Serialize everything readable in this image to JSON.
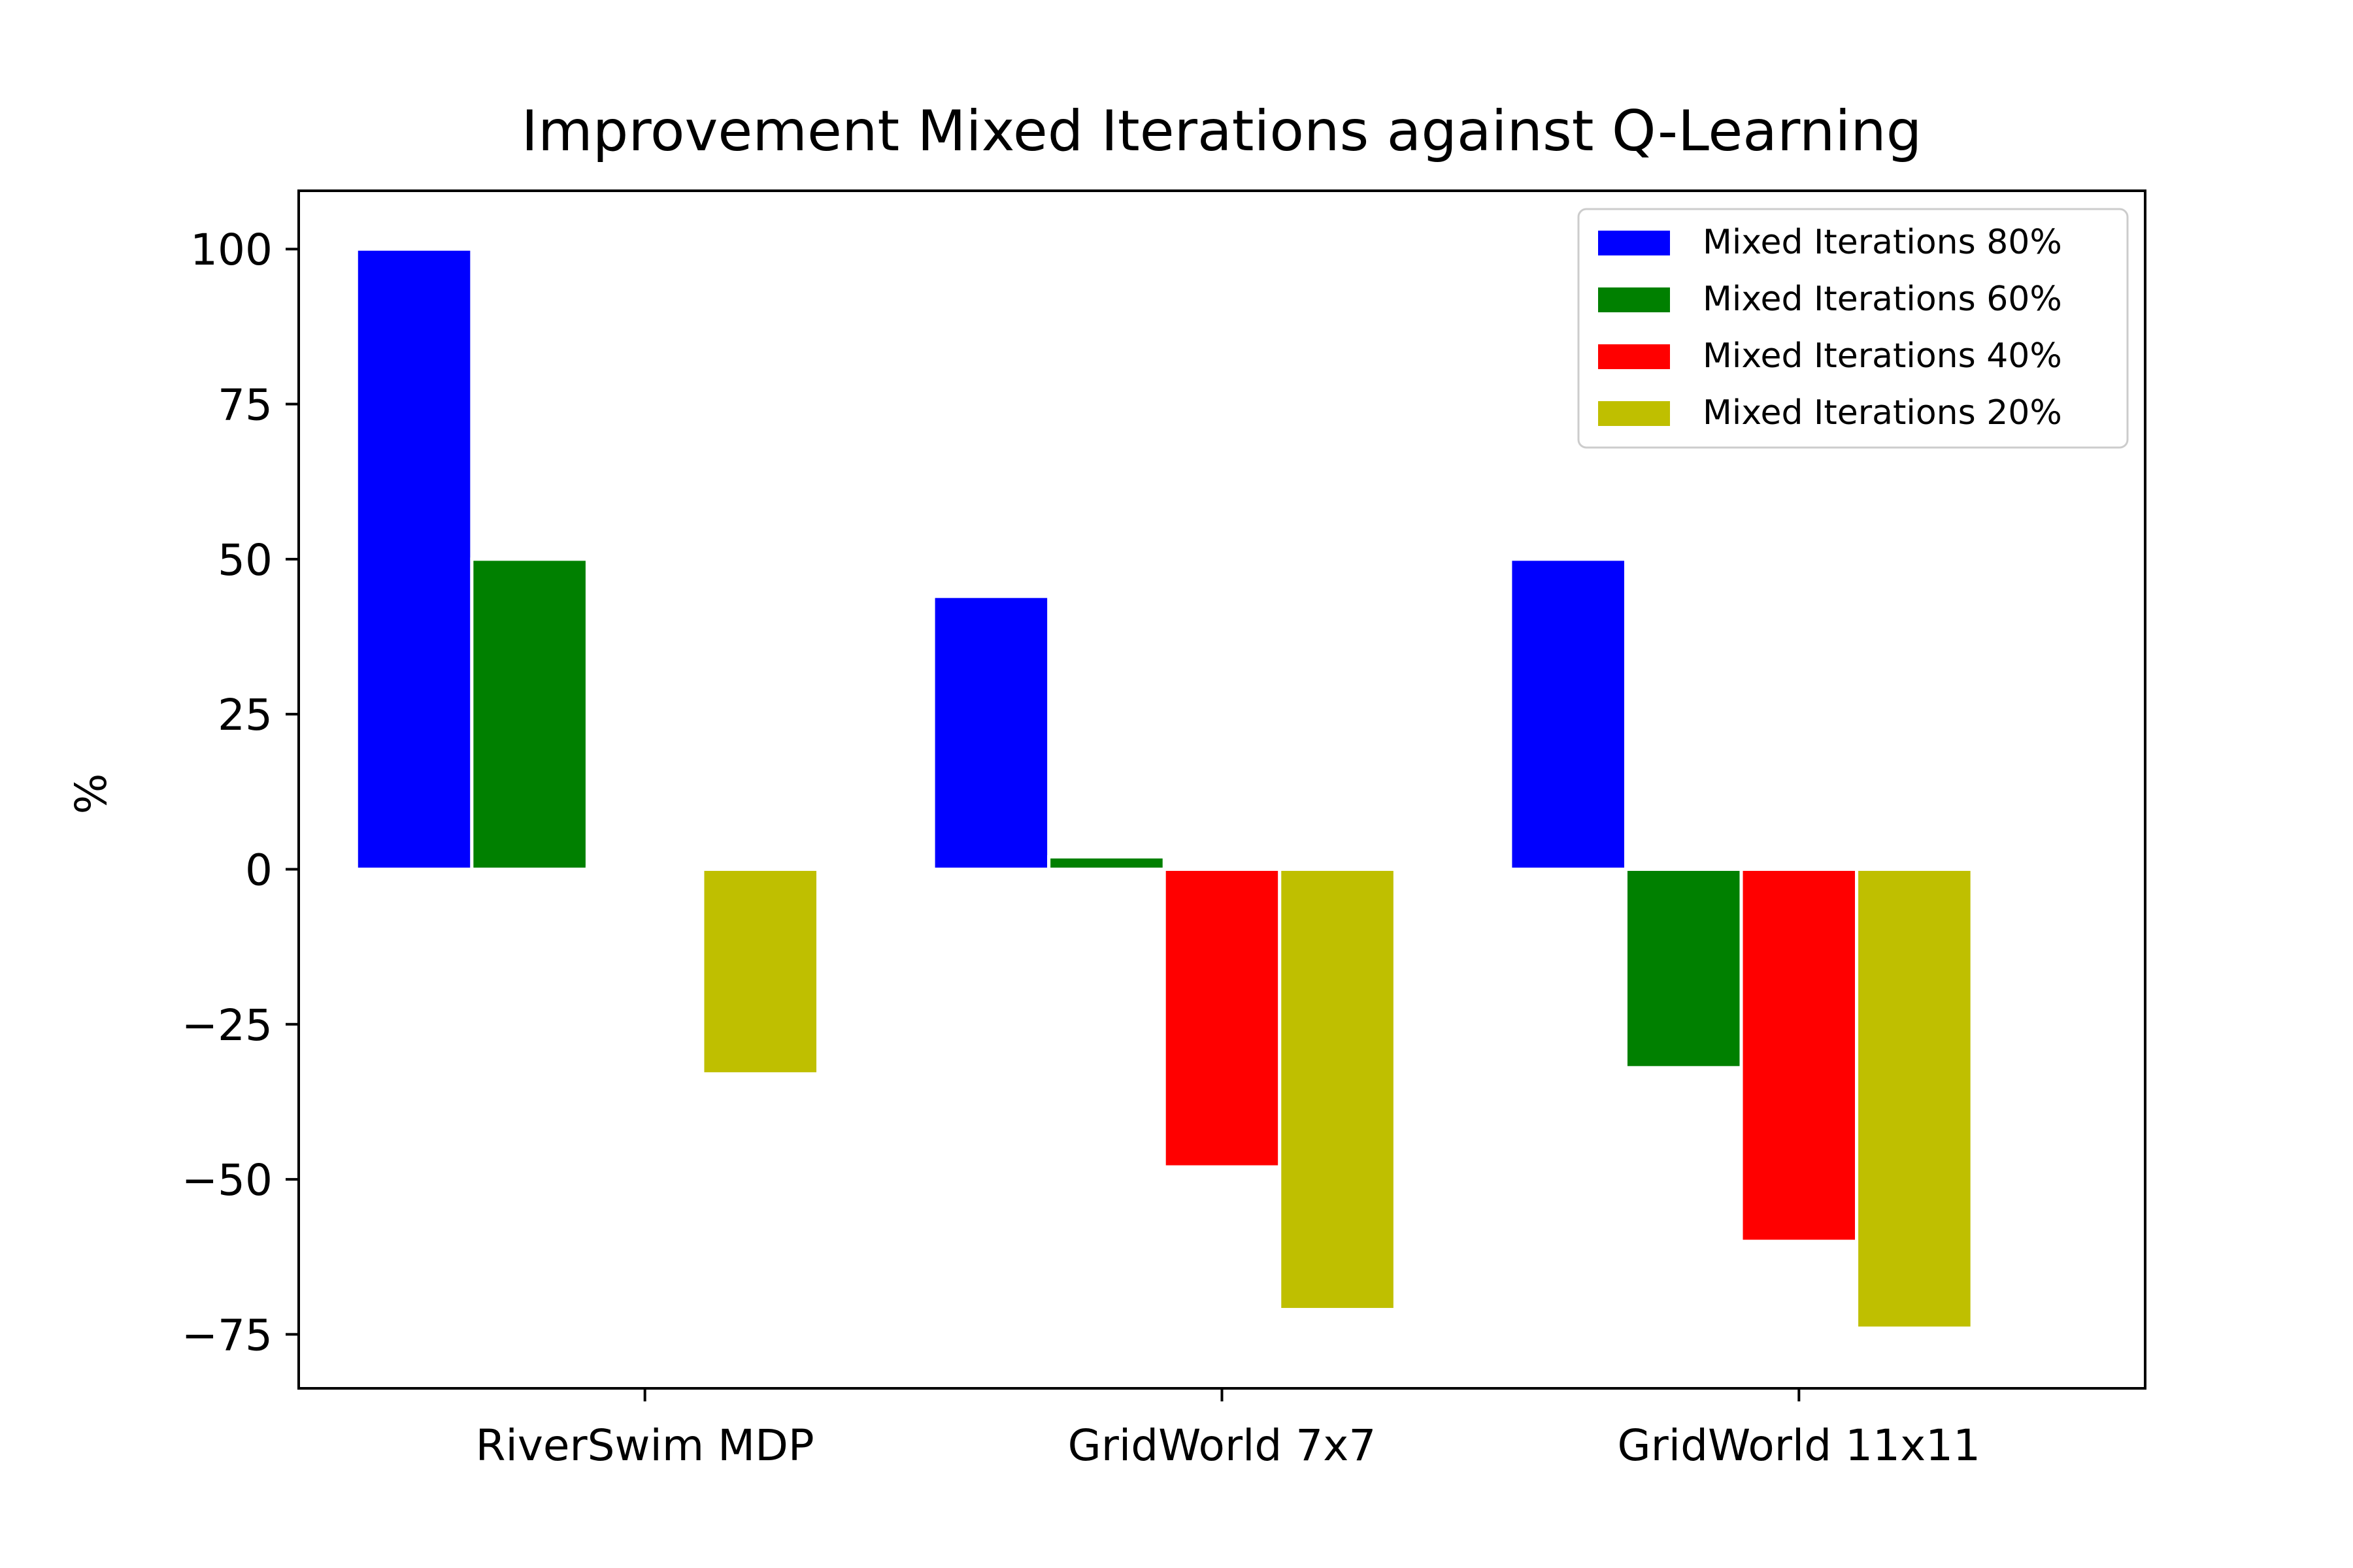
{
  "chart_data": {
    "type": "bar",
    "title": "Improvement Mixed Iterations against Q-Learning",
    "xlabel": "",
    "ylabel": "%",
    "categories": [
      "RiverSwim MDP",
      "GridWorld 7x7",
      "GridWorld 11x11"
    ],
    "series": [
      {
        "name": "Mixed Iterations 80%",
        "color": "#0000ff",
        "values": [
          100,
          44,
          50
        ]
      },
      {
        "name": "Mixed Iterations 60%",
        "color": "#008000",
        "values": [
          50,
          2,
          -32
        ]
      },
      {
        "name": "Mixed Iterations 40%",
        "color": "#ff0000",
        "values": [
          0.3,
          -48,
          -60
        ]
      },
      {
        "name": "Mixed Iterations 20%",
        "color": "#bfbf00",
        "values": [
          -33,
          -71,
          -74
        ]
      }
    ],
    "ylim": [
      -83.7,
      109.4
    ],
    "yticks": [
      100,
      75,
      50,
      25,
      0,
      -25,
      -50,
      -75
    ],
    "ytick_labels": [
      "100",
      "75",
      "50",
      "25",
      "0",
      "−25",
      "−50",
      "−75"
    ],
    "grid": false,
    "legend_position": "top-right"
  }
}
